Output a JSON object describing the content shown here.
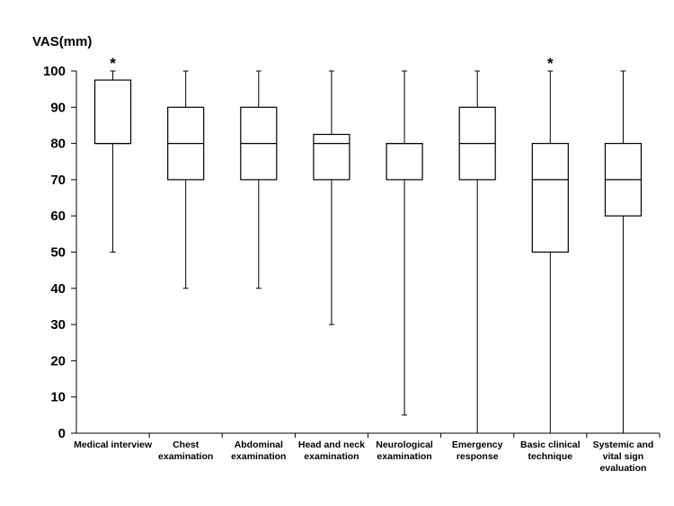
{
  "chart_data": {
    "type": "boxplot",
    "ylabel": "VAS(mm)",
    "ylim": [
      0,
      100
    ],
    "yticks": [
      0,
      10,
      20,
      30,
      40,
      50,
      60,
      70,
      80,
      90,
      100
    ],
    "grid": false,
    "significance_marker": "*",
    "categories": [
      {
        "lines": [
          "Medical interview"
        ]
      },
      {
        "lines": [
          "Chest",
          "examination"
        ]
      },
      {
        "lines": [
          "Abdominal",
          "examination"
        ]
      },
      {
        "lines": [
          "Head and neck",
          "examination"
        ]
      },
      {
        "lines": [
          "Neurological",
          "examination"
        ]
      },
      {
        "lines": [
          "Emergency",
          "response"
        ]
      },
      {
        "lines": [
          "Basic clinical",
          "technique"
        ]
      },
      {
        "lines": [
          "Systemic and",
          "vital sign",
          "evaluation"
        ]
      }
    ],
    "series": [
      {
        "min": 50,
        "q1": 80,
        "median": 80,
        "q3": 97.5,
        "max": 100,
        "marked": true
      },
      {
        "min": 40,
        "q1": 70,
        "median": 80,
        "q3": 90,
        "max": 100,
        "marked": false
      },
      {
        "min": 40,
        "q1": 70,
        "median": 80,
        "q3": 90,
        "max": 100,
        "marked": false
      },
      {
        "min": 30,
        "q1": 70,
        "median": 80,
        "q3": 82.5,
        "max": 100,
        "marked": false
      },
      {
        "min": 5,
        "q1": 70,
        "median": 80,
        "q3": 80,
        "max": 100,
        "marked": false
      },
      {
        "min": 0,
        "q1": 70,
        "median": 80,
        "q3": 90,
        "max": 100,
        "marked": false
      },
      {
        "min": 0,
        "q1": 50,
        "median": 70,
        "q3": 80,
        "max": 100,
        "marked": true
      },
      {
        "min": 0,
        "q1": 60,
        "median": 70,
        "q3": 80,
        "max": 100,
        "marked": false
      }
    ]
  }
}
